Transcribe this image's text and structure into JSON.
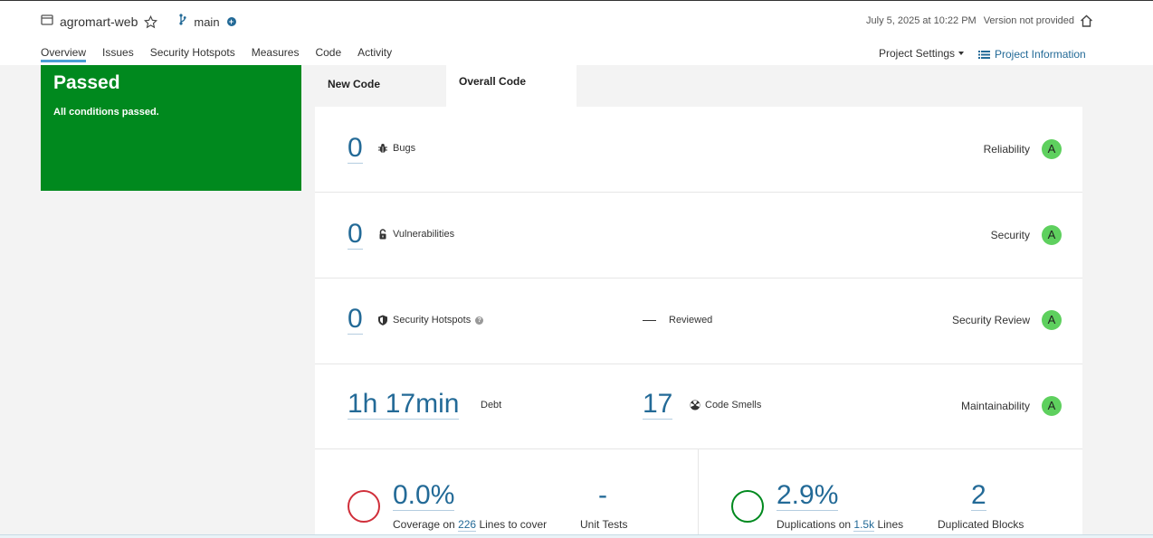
{
  "project": {
    "name": "agromart-web",
    "branch": "main",
    "date": "July 5, 2025 at 10:22 PM",
    "version": "Version not provided"
  },
  "nav": [
    "Overview",
    "Issues",
    "Security Hotspots",
    "Measures",
    "Code",
    "Activity"
  ],
  "header_actions": {
    "settings": "Project Settings",
    "info": "Project Information"
  },
  "quality_gate": {
    "status": "Passed",
    "message": "All conditions passed."
  },
  "tabs": [
    "New Code",
    "Overall Code"
  ],
  "metrics": {
    "bugs": {
      "value": "0",
      "label": "Bugs",
      "category": "Reliability",
      "grade": "A"
    },
    "vulnerabilities": {
      "value": "0",
      "label": "Vulnerabilities",
      "category": "Security",
      "grade": "A"
    },
    "hotspots": {
      "value": "0",
      "label": "Security Hotspots",
      "reviewed_value": "—",
      "reviewed_label": "Reviewed",
      "category": "Security Review",
      "grade": "A"
    },
    "debt": {
      "value": "1h 17min",
      "label": "Debt",
      "smells_value": "17",
      "smells_label": "Code Smells",
      "category": "Maintainability",
      "grade": "A"
    }
  },
  "coverage": {
    "value": "0.0%",
    "prefix": "Coverage on",
    "lines": "226",
    "suffix": "Lines to cover",
    "unit_tests_value": "-",
    "unit_tests_label": "Unit Tests",
    "color": "#d02f3a"
  },
  "duplications": {
    "value": "2.9%",
    "prefix": "Duplications on",
    "lines": "1.5k",
    "suffix": "Lines",
    "blocks_value": "2",
    "blocks_label": "Duplicated Blocks",
    "color": "#00891e"
  }
}
